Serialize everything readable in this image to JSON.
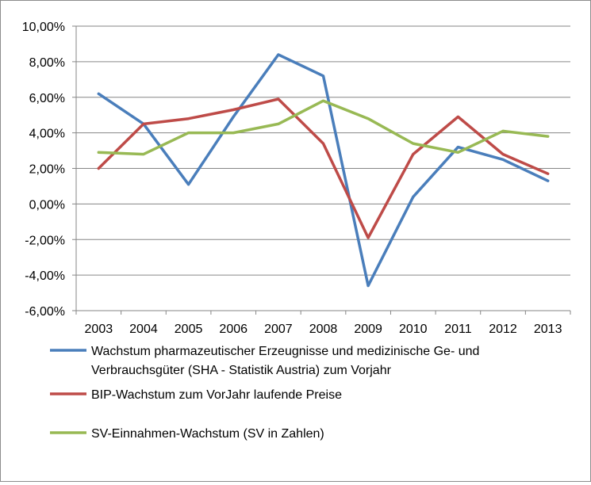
{
  "chart_data": {
    "type": "line",
    "categories": [
      "2003",
      "2004",
      "2005",
      "2006",
      "2007",
      "2008",
      "2009",
      "2010",
      "2011",
      "2012",
      "2013"
    ],
    "ylim": [
      -6,
      10
    ],
    "yticks": [
      10,
      8,
      6,
      4,
      2,
      0,
      -2,
      -4,
      -6
    ],
    "ytick_labels": [
      "10,00%",
      "8,00%",
      "6,00%",
      "4,00%",
      "2,00%",
      "0,00%",
      "-2,00%",
      "-4,00%",
      "-6,00%"
    ],
    "grid": true,
    "legend_position": "bottom",
    "series": [
      {
        "name": "Wachstum pharmazeutischer Erzeugnisse und medizinische Ge- und Verbrauchsgüter (SHA - Statistik Austria) zum Vorjahr",
        "legend_lines": [
          "Wachstum pharmazeutischer Erzeugnisse und medizinische Ge- und",
          "Verbrauchsgüter (SHA - Statistik Austria) zum Vorjahr"
        ],
        "color": "#4a7ebb",
        "values": [
          6.2,
          4.5,
          1.1,
          4.9,
          8.4,
          7.2,
          -4.6,
          0.4,
          3.2,
          2.5,
          1.3
        ]
      },
      {
        "name": "BIP-Wachstum zum VorJahr laufende Preise",
        "legend_lines": [
          "BIP-Wachstum zum VorJahr laufende Preise"
        ],
        "color": "#be4b48",
        "values": [
          2.0,
          4.5,
          4.8,
          5.3,
          5.9,
          3.4,
          -1.9,
          2.8,
          4.9,
          2.8,
          1.7
        ]
      },
      {
        "name": "SV-Einnahmen-Wachstum (SV in Zahlen)",
        "legend_lines": [
          "SV-Einnahmen-Wachstum (SV in Zahlen)"
        ],
        "color": "#98b954",
        "values": [
          2.9,
          2.8,
          4.0,
          4.0,
          4.5,
          5.8,
          4.8,
          3.4,
          2.9,
          4.1,
          3.8
        ]
      }
    ]
  }
}
